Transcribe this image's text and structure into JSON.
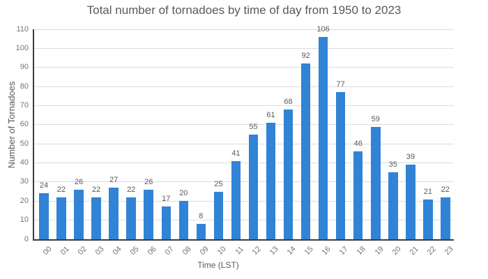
{
  "chart_data": {
    "type": "bar",
    "title": "Total number of tornadoes by time of day from 1950 to 2023",
    "xlabel": "Time (LST)",
    "ylabel": "Number of Tornadoes",
    "categories": [
      "00",
      "01",
      "02",
      "03",
      "04",
      "05",
      "06",
      "07",
      "08",
      "09",
      "10",
      "11",
      "12",
      "13",
      "14",
      "15",
      "16",
      "17",
      "18",
      "19",
      "20",
      "21",
      "22",
      "23"
    ],
    "values": [
      24,
      22,
      26,
      22,
      27,
      22,
      26,
      17,
      20,
      8,
      25,
      41,
      55,
      61,
      68,
      92,
      106,
      77,
      46,
      59,
      35,
      39,
      21,
      22
    ],
    "ylim": [
      0,
      110
    ],
    "ytick_step": 10,
    "yticks": [
      0,
      10,
      20,
      30,
      40,
      50,
      60,
      70,
      80,
      90,
      100,
      110
    ],
    "grid": true,
    "legend": "none",
    "value_labels": true,
    "colors": {
      "bar": "#3183d6",
      "grid": "#dcdcdc",
      "axis": "#3c3c3c",
      "tick_label": "#757575",
      "value_label": "#595959",
      "title": "#595959",
      "background": "#ffffff"
    }
  }
}
